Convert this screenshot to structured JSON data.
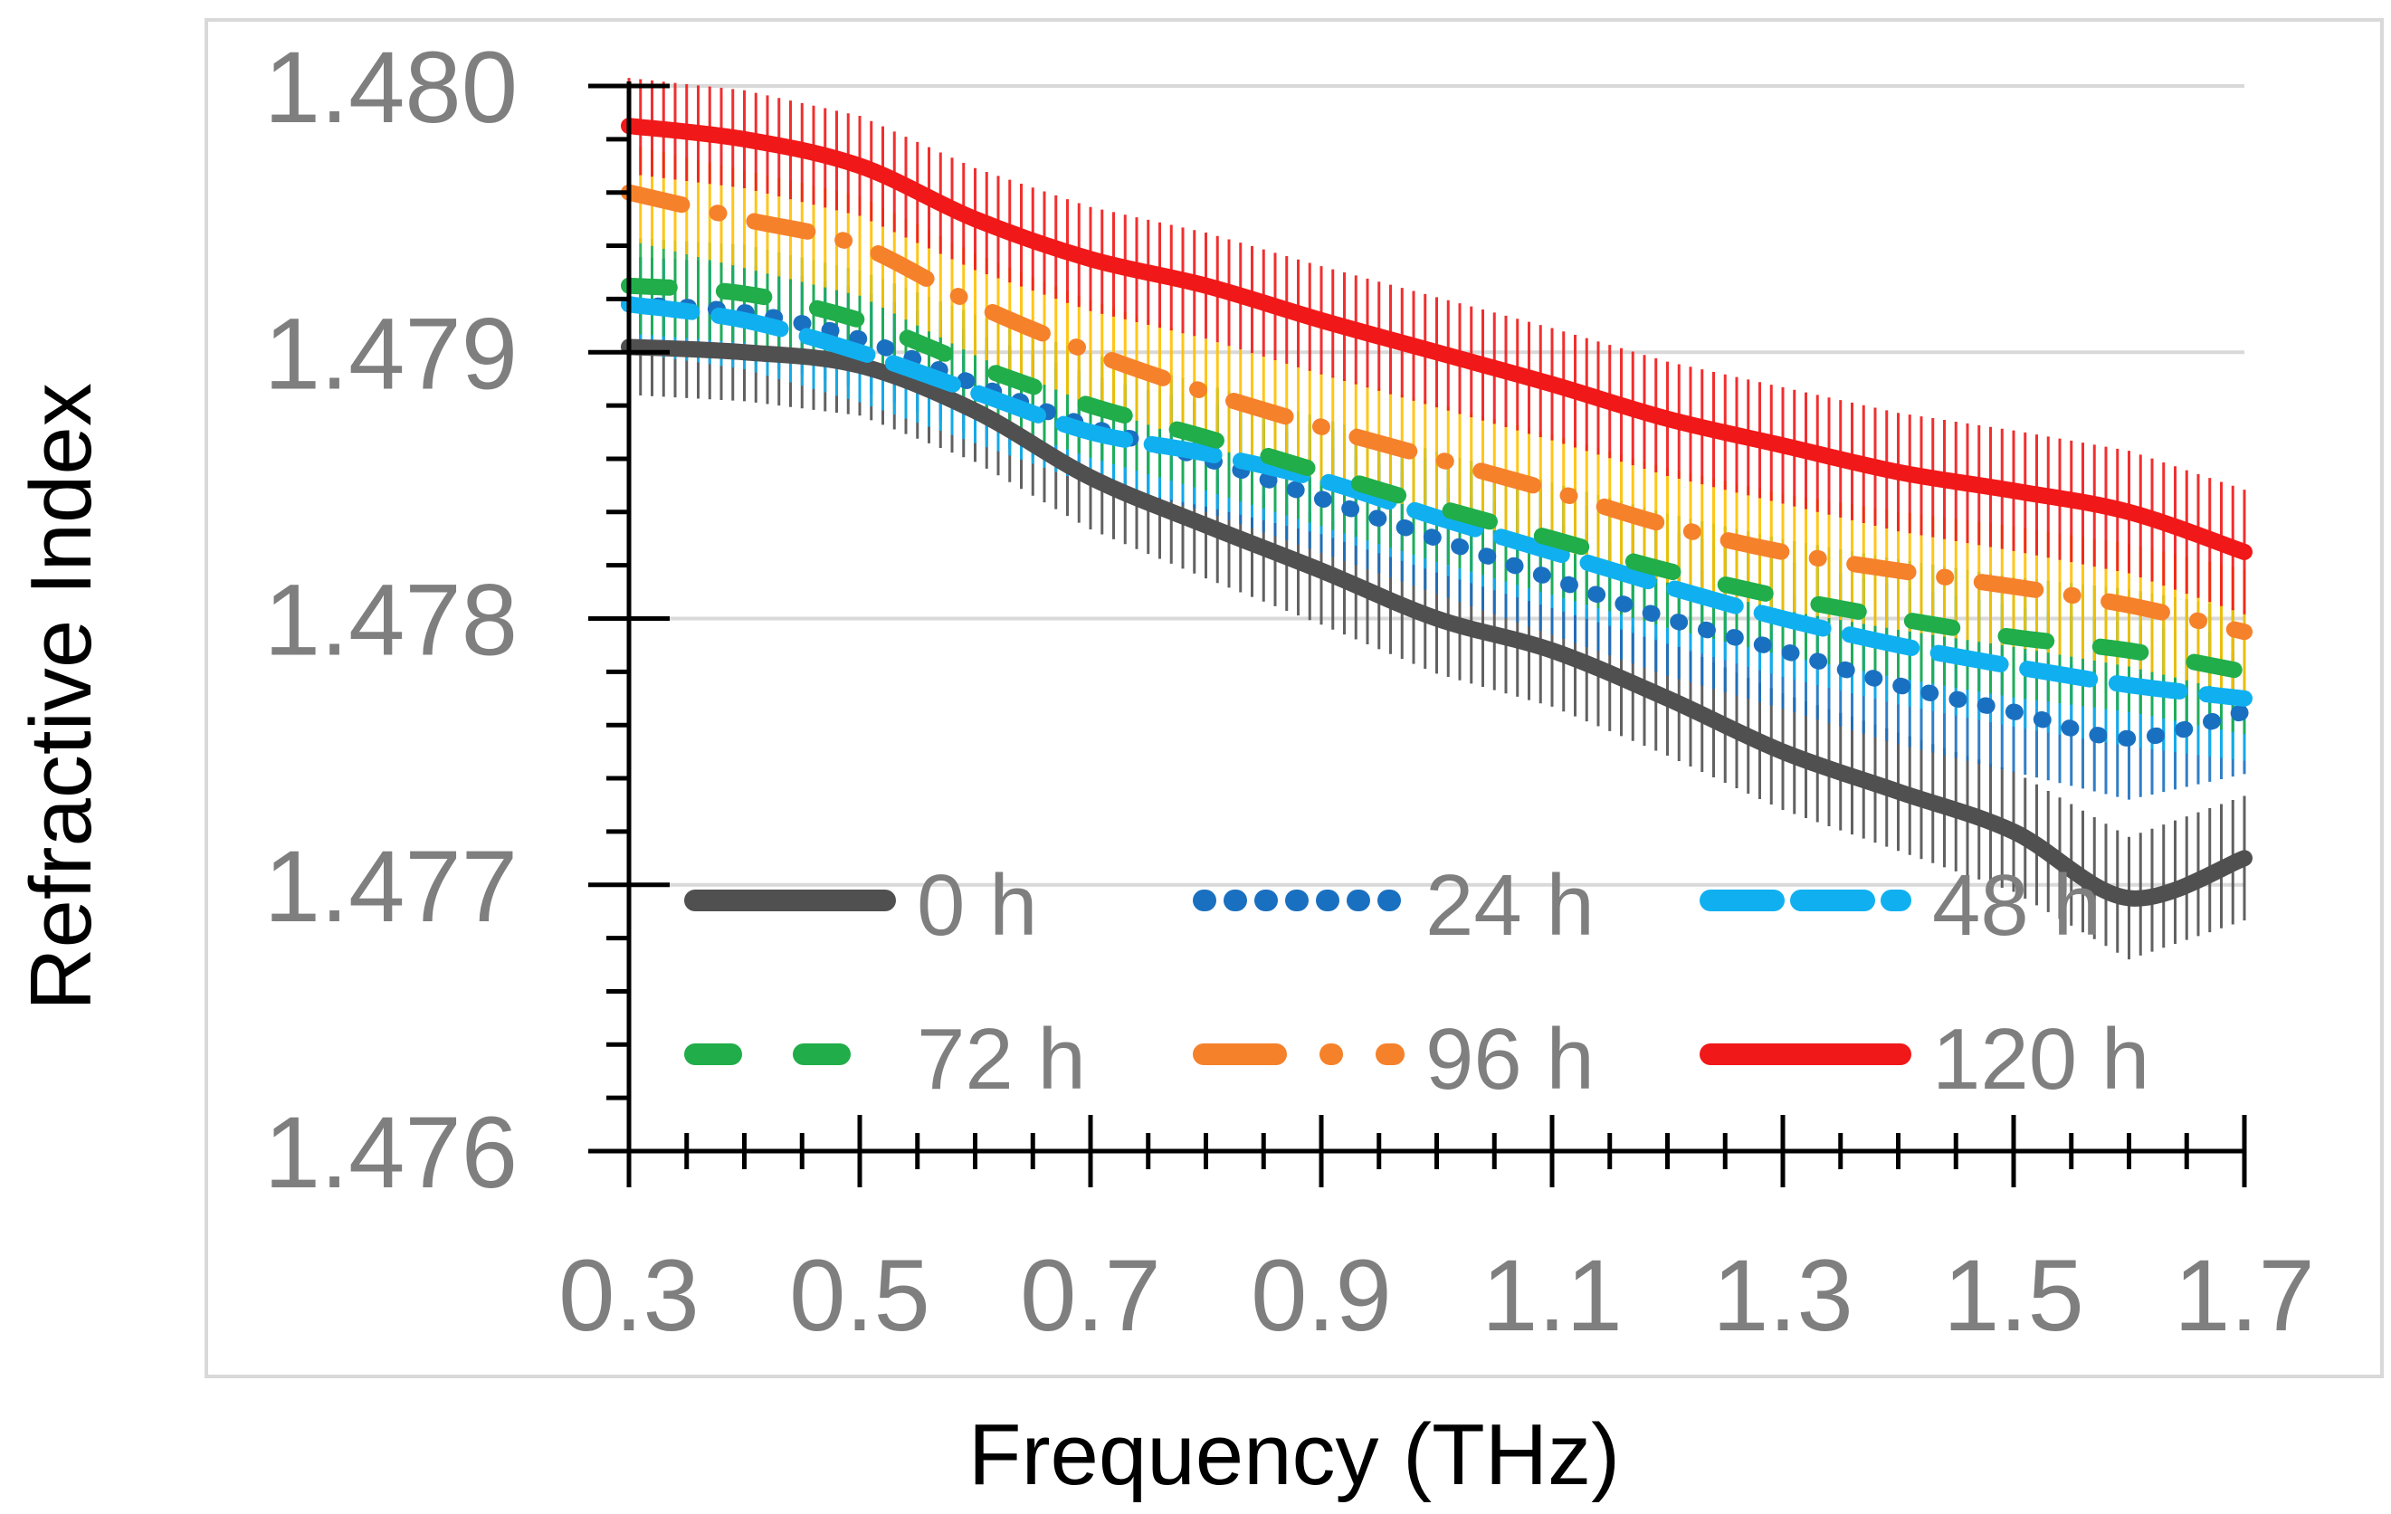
{
  "chart_data": {
    "type": "line",
    "title": "",
    "xlabel": "Frequency (THz)",
    "ylabel": "Refractive Index",
    "xlim": [
      0.3,
      1.7
    ],
    "ylim": [
      1.476,
      1.48
    ],
    "xticks": [
      0.3,
      0.5,
      0.7,
      0.9,
      1.1,
      1.3,
      1.5,
      1.7
    ],
    "xtick_labels": [
      "0.3",
      "0.5",
      "0.7",
      "0.9",
      "1.1",
      "1.3",
      "1.5",
      "1.7"
    ],
    "yticks": [
      1.476,
      1.477,
      1.478,
      1.479,
      1.48
    ],
    "ytick_labels": [
      "1.476",
      "1.477",
      "1.478",
      "1.479",
      "1.480"
    ],
    "grid": "horizontal",
    "legend_position": "bottom, inside plot, 2 rows x 3 columns",
    "x": [
      0.3,
      0.4,
      0.5,
      0.6,
      0.7,
      0.8,
      0.9,
      1.0,
      1.1,
      1.2,
      1.3,
      1.4,
      1.5,
      1.6,
      1.7
    ],
    "series": [
      {
        "name": "0 h",
        "color": "#505050",
        "style": "solid",
        "values": [
          1.47902,
          1.479,
          1.47895,
          1.47878,
          1.47853,
          1.47835,
          1.47818,
          1.478,
          1.47788,
          1.4777,
          1.4775,
          1.47735,
          1.4772,
          1.47695,
          1.4771
        ]
      },
      {
        "name": "24 h",
        "color": "#1a70c0",
        "style": "dotted",
        "values": [
          1.47918,
          1.47915,
          1.47905,
          1.47888,
          1.47872,
          1.4786,
          1.47845,
          1.4783,
          1.47815,
          1.478,
          1.47788,
          1.47775,
          1.47765,
          1.47755,
          1.47765
        ]
      },
      {
        "name": "48 h",
        "color": "#10b0f0",
        "style": "long dash",
        "values": [
          1.47918,
          1.47912,
          1.479,
          1.47885,
          1.4787,
          1.47862,
          1.47852,
          1.47838,
          1.47825,
          1.47812,
          1.478,
          1.4779,
          1.47782,
          1.47775,
          1.4777
        ]
      },
      {
        "name": "72 h",
        "color": "#20ad4a",
        "style": "dash",
        "values": [
          1.47925,
          1.47922,
          1.47912,
          1.47895,
          1.4788,
          1.47868,
          1.47855,
          1.47842,
          1.4783,
          1.47818,
          1.47808,
          1.478,
          1.47793,
          1.47788,
          1.4778
        ]
      },
      {
        "name": "96 h",
        "color": "#f5812a",
        "style": "dash-dot",
        "values": [
          1.4796,
          1.4795,
          1.4794,
          1.47918,
          1.479,
          1.47885,
          1.47872,
          1.4786,
          1.47848,
          1.47835,
          1.47825,
          1.47818,
          1.47812,
          1.47805,
          1.47795
        ]
      },
      {
        "name": "120 h",
        "color": "#f01818",
        "style": "solid",
        "values": [
          1.47985,
          1.4798,
          1.4797,
          1.4795,
          1.47935,
          1.47925,
          1.47912,
          1.479,
          1.47888,
          1.47875,
          1.47865,
          1.47855,
          1.47848,
          1.4784,
          1.47825
        ]
      }
    ],
    "error_bar_color": "#ffc000",
    "error_bar_half_width": 0.00018
  }
}
